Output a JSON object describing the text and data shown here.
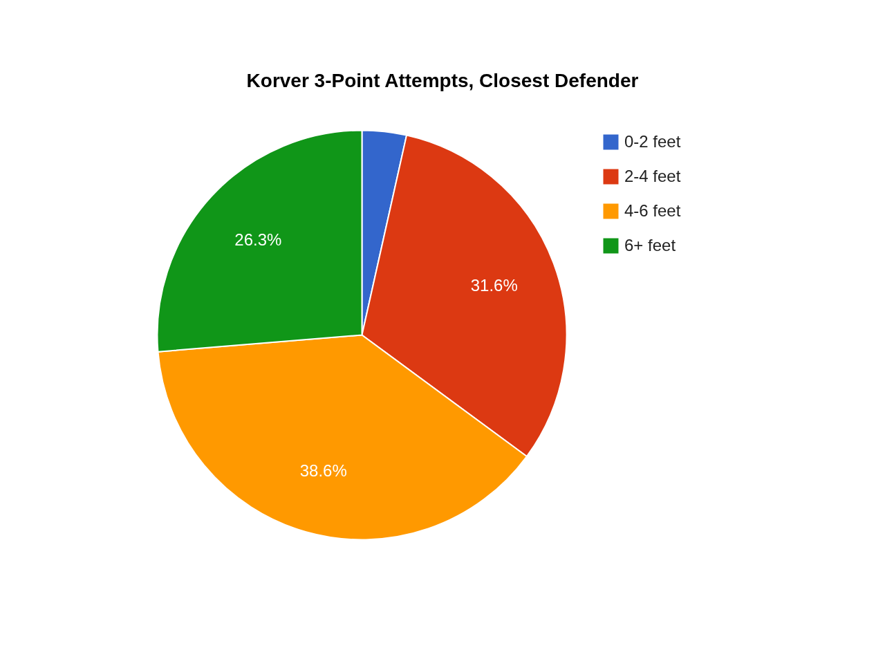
{
  "chart_data": {
    "type": "pie",
    "title": "Korver 3-Point Attempts, Closest Defender",
    "categories": [
      "0-2 feet",
      "2-4 feet",
      "4-6 feet",
      "6+ feet"
    ],
    "values": [
      3.5,
      31.6,
      38.6,
      26.3
    ],
    "colors": [
      "#3366cc",
      "#dc3912",
      "#ff9900",
      "#109618"
    ],
    "value_labels": [
      null,
      "31.6%",
      "38.6%",
      "26.3%"
    ],
    "legend": "right"
  }
}
